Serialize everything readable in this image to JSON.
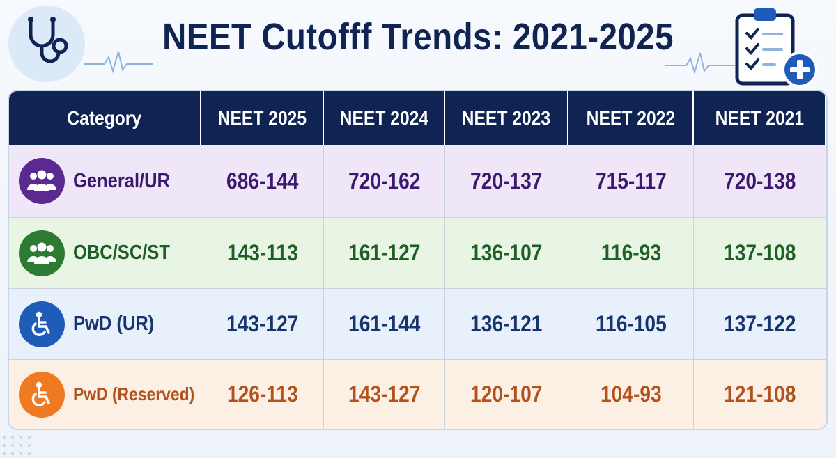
{
  "colors": {
    "header_bg": "#0f2453",
    "title": "#0f2450",
    "general_ur": "#5a2a90",
    "obc_sc_st": "#2d7a32",
    "pwd_ur": "#1f5bb8",
    "pwd_reserved": "#ef7a22"
  },
  "icons": {
    "top_left": "stethoscope-icon",
    "top_right": "clipboard-plus-icon",
    "general_ur": "group-icon",
    "obc_sc_st": "group-icon",
    "pwd_ur": "wheelchair-icon",
    "pwd_reserved": "wheelchair-icon"
  },
  "chart_data": {
    "type": "table",
    "title": "NEET Cutofff Trends: 2021-2025",
    "columns": [
      "Category",
      "NEET 2025",
      "NEET 2024",
      "NEET 2023",
      "NEET 2022",
      "NEET 2021"
    ],
    "rows": [
      {
        "category": "General/UR",
        "values": [
          "686-144",
          "720-162",
          "720-137",
          "715-117",
          "720-138"
        ]
      },
      {
        "category": "OBC/SC/ST",
        "values": [
          "143-113",
          "161-127",
          "136-107",
          "116-93",
          "137-108"
        ]
      },
      {
        "category": "PwD (UR)",
        "values": [
          "143-127",
          "161-144",
          "136-121",
          "116-105",
          "137-122"
        ]
      },
      {
        "category": "PwD (Reserved)",
        "values": [
          "126-113",
          "143-127",
          "120-107",
          "104-93",
          "121-108"
        ]
      }
    ]
  }
}
